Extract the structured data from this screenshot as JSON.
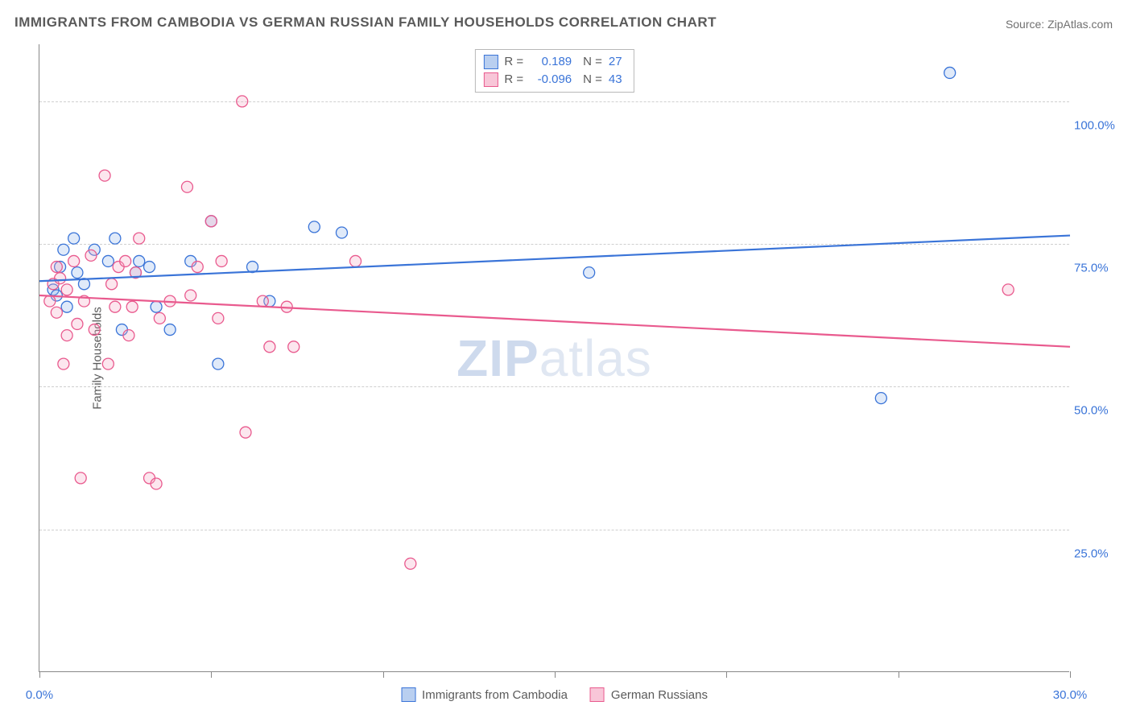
{
  "title": "IMMIGRANTS FROM CAMBODIA VS GERMAN RUSSIAN FAMILY HOUSEHOLDS CORRELATION CHART",
  "source": "Source: ZipAtlas.com",
  "watermark_zip": "ZIP",
  "watermark_atlas": "atlas",
  "chart": {
    "type": "scatter",
    "ylabel": "Family Households",
    "xlim": [
      0,
      30
    ],
    "ylim": [
      0,
      110
    ],
    "y_gridlines": [
      25,
      50,
      75,
      100
    ],
    "y_tick_labels": [
      "25.0%",
      "50.0%",
      "75.0%",
      "100.0%"
    ],
    "x_ticks": [
      0,
      5,
      10,
      15,
      20,
      25,
      30
    ],
    "x_tick_labels": {
      "0": "0.0%",
      "30": "30.0%"
    },
    "grid_color": "#cfcfcf",
    "axis_color": "#888888",
    "background_color": "#ffffff",
    "marker_radius": 7,
    "marker_fill_opacity": 0.28,
    "line_width": 2.2,
    "series": [
      {
        "name": "Immigrants from Cambodia",
        "color_stroke": "#3a74d8",
        "color_fill": "#8fb3ea",
        "swatch_fill": "#b9cff0",
        "swatch_border": "#3a74d8",
        "R": "0.189",
        "N": "27",
        "trend": {
          "x1": 0,
          "y1": 68.5,
          "x2": 30,
          "y2": 76.5
        },
        "points": [
          [
            0.4,
            67
          ],
          [
            0.5,
            66
          ],
          [
            0.6,
            71
          ],
          [
            0.7,
            74
          ],
          [
            0.8,
            64
          ],
          [
            1.0,
            76
          ],
          [
            1.1,
            70
          ],
          [
            1.3,
            68
          ],
          [
            1.6,
            74
          ],
          [
            2.0,
            72
          ],
          [
            2.2,
            76
          ],
          [
            2.4,
            60
          ],
          [
            2.8,
            70
          ],
          [
            2.9,
            72
          ],
          [
            3.2,
            71
          ],
          [
            3.4,
            64
          ],
          [
            3.8,
            60
          ],
          [
            4.4,
            72
          ],
          [
            5.0,
            79
          ],
          [
            5.2,
            54
          ],
          [
            6.2,
            71
          ],
          [
            6.7,
            65
          ],
          [
            8.0,
            78
          ],
          [
            8.8,
            77
          ],
          [
            16.0,
            70
          ],
          [
            24.5,
            48
          ],
          [
            26.5,
            105
          ]
        ]
      },
      {
        "name": "German Russians",
        "color_stroke": "#e95a8e",
        "color_fill": "#f4a6c1",
        "swatch_fill": "#f8c6d8",
        "swatch_border": "#e95a8e",
        "R": "-0.096",
        "N": "43",
        "trend": {
          "x1": 0,
          "y1": 66.0,
          "x2": 30,
          "y2": 57.0
        },
        "points": [
          [
            0.3,
            65
          ],
          [
            0.4,
            68
          ],
          [
            0.5,
            63
          ],
          [
            0.5,
            71
          ],
          [
            0.6,
            69
          ],
          [
            0.7,
            54
          ],
          [
            0.8,
            59
          ],
          [
            0.8,
            67
          ],
          [
            1.0,
            72
          ],
          [
            1.1,
            61
          ],
          [
            1.2,
            34
          ],
          [
            1.3,
            65
          ],
          [
            1.5,
            73
          ],
          [
            1.6,
            60
          ],
          [
            1.9,
            87
          ],
          [
            2.0,
            54
          ],
          [
            2.1,
            68
          ],
          [
            2.2,
            64
          ],
          [
            2.3,
            71
          ],
          [
            2.5,
            72
          ],
          [
            2.6,
            59
          ],
          [
            2.7,
            64
          ],
          [
            2.8,
            70
          ],
          [
            2.9,
            76
          ],
          [
            3.2,
            34
          ],
          [
            3.4,
            33
          ],
          [
            3.5,
            62
          ],
          [
            3.8,
            65
          ],
          [
            4.3,
            85
          ],
          [
            4.4,
            66
          ],
          [
            4.6,
            71
          ],
          [
            5.0,
            79
          ],
          [
            5.2,
            62
          ],
          [
            5.3,
            72
          ],
          [
            5.9,
            100
          ],
          [
            6.0,
            42
          ],
          [
            6.5,
            65
          ],
          [
            6.7,
            57
          ],
          [
            7.2,
            64
          ],
          [
            7.4,
            57
          ],
          [
            9.2,
            72
          ],
          [
            10.8,
            19
          ],
          [
            28.2,
            67
          ]
        ]
      }
    ]
  },
  "legend_labels": {
    "R": "R =",
    "N": "N ="
  }
}
